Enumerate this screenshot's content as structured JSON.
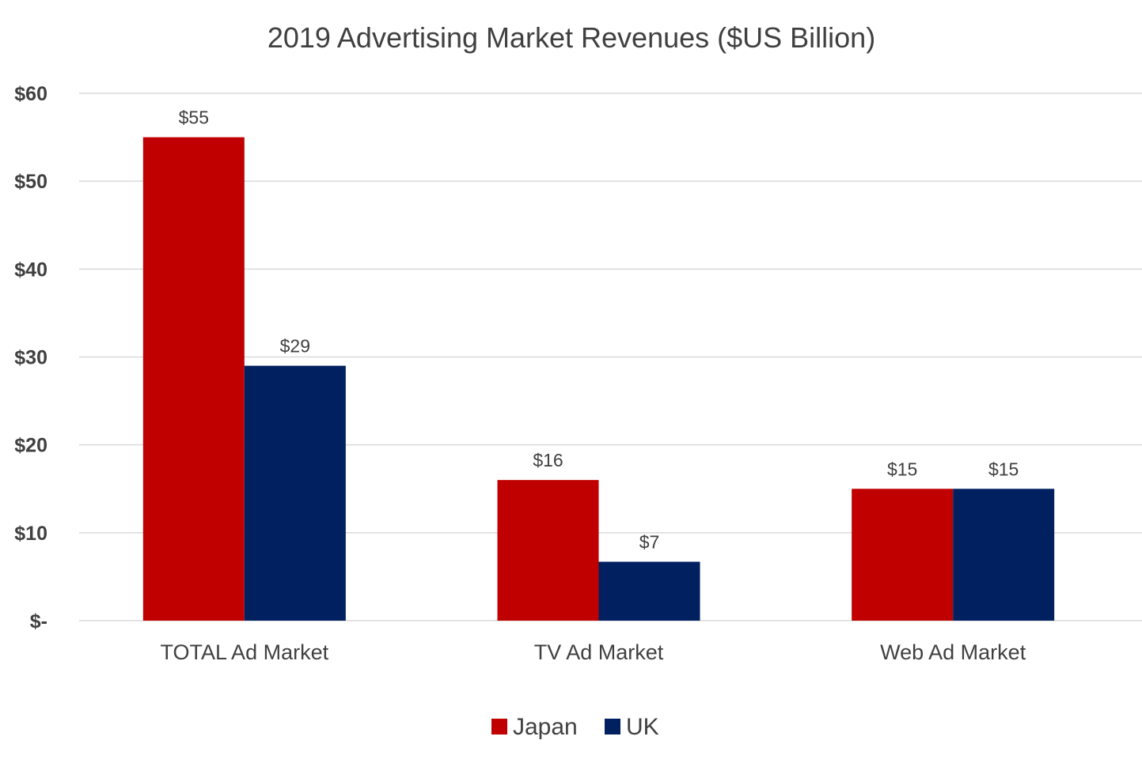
{
  "chart_data": {
    "type": "bar",
    "title": "2019 Advertising Market Revenues ($US Billion)",
    "xlabel": "",
    "ylabel": "",
    "categories": [
      "TOTAL Ad Market",
      "TV Ad Market",
      "Web Ad Market"
    ],
    "series": [
      {
        "name": "Japan",
        "color": "#c00000",
        "values": [
          55,
          16,
          15
        ],
        "labels": [
          "$55",
          "$16",
          "$15"
        ]
      },
      {
        "name": "UK",
        "color": "#002060",
        "values": [
          29,
          6.7,
          15
        ],
        "labels": [
          "$29",
          "$7",
          "$15"
        ]
      }
    ],
    "ylim": [
      0,
      60
    ],
    "yticks": [
      0,
      10,
      20,
      30,
      40,
      50,
      60
    ],
    "ytick_labels": [
      "$-",
      "$10",
      "$20",
      "$30",
      "$40",
      "$50",
      "$60"
    ],
    "grid": true,
    "legend_position": "bottom"
  }
}
